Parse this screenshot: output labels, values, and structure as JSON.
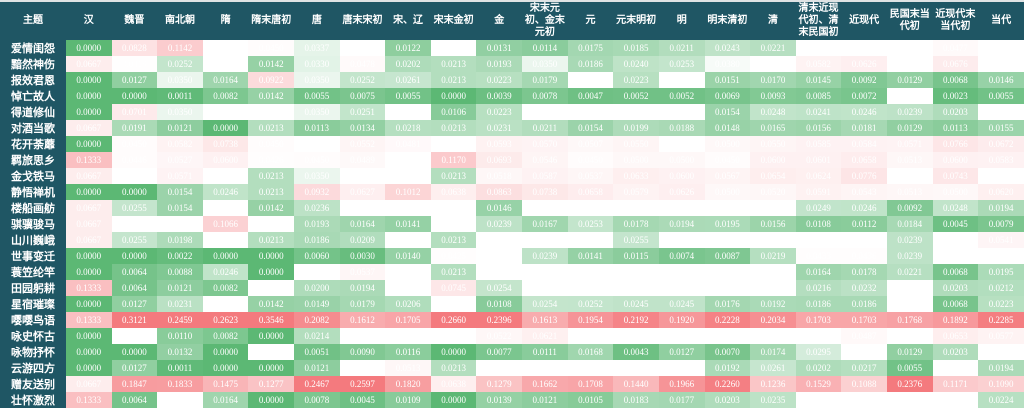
{
  "header": {
    "topic_label": "主题",
    "columns": [
      "汉",
      "魏晋",
      "南北朝",
      "隋",
      "隋末唐初",
      "唐",
      "唐末宋初",
      "宋、辽",
      "宋末金初",
      "金",
      "宋末元初、金末元初",
      "元",
      "元末明初",
      "明",
      "明末清初",
      "清",
      "清末近现代初、清末民国初",
      "近现代",
      "民国末当代初",
      "近现代末当代初",
      "当代"
    ]
  },
  "colors": {
    "low": "#5cb874",
    "mid": "#ffffff",
    "high": "#f47a7e",
    "header_bg": "#1f5664"
  },
  "chart_data": {
    "type": "heatmap",
    "rows": [
      {
        "topic": "爱情闺怨",
        "values": [
          0.0,
          0.0828,
          0.1142,
          0.04,
          0.045,
          0.0337,
          0.04,
          0.0122,
          0.04,
          0.0131,
          0.0114,
          0.0175,
          0.0185,
          0.0211,
          0.0243,
          0.0221,
          0.04,
          0.04,
          0.04,
          0.0477,
          0.04
        ]
      },
      {
        "topic": "黯然神伤",
        "values": [
          0.0667,
          0.0419,
          0.0252,
          0.04,
          0.0142,
          0.033,
          0.0478,
          0.0202,
          0.0213,
          0.0193,
          0.035,
          0.0186,
          0.024,
          0.0253,
          0.038,
          0.04,
          0.0582,
          0.0626,
          0.04,
          0.0676,
          0.04
        ]
      },
      {
        "topic": "报效君恩",
        "values": [
          0.0,
          0.0127,
          0.035,
          0.0164,
          0.0922,
          0.035,
          0.0252,
          0.0261,
          0.0213,
          0.0223,
          0.0179,
          0.04,
          0.0223,
          0.04,
          0.0151,
          0.017,
          0.0145,
          0.0092,
          0.0129,
          0.0068,
          0.0146
        ]
      },
      {
        "topic": "悼亡故人",
        "values": [
          0.0,
          0.0,
          0.0011,
          0.0082,
          0.0142,
          0.0055,
          0.0075,
          0.0055,
          0.0,
          0.0039,
          0.0078,
          0.0047,
          0.0052,
          0.0052,
          0.0069,
          0.0093,
          0.0085,
          0.0072,
          0.04,
          0.0023,
          0.0055
        ]
      },
      {
        "topic": "得道修仙",
        "values": [
          0.0,
          0.0701,
          0.035,
          0.04,
          0.04,
          0.035,
          0.0251,
          0.04,
          0.0106,
          0.0223,
          0.04,
          0.04,
          0.04,
          0.04,
          0.0154,
          0.0248,
          0.0241,
          0.0246,
          0.0239,
          0.0203,
          0.04
        ]
      },
      {
        "topic": "对酒当歌",
        "values": [
          0.0667,
          0.0191,
          0.0121,
          0.0,
          0.0213,
          0.0113,
          0.0134,
          0.0218,
          0.0213,
          0.0231,
          0.0211,
          0.0154,
          0.0199,
          0.0188,
          0.0148,
          0.0165,
          0.0156,
          0.0181,
          0.0129,
          0.0113,
          0.0155
        ]
      },
      {
        "topic": "花开荼蘼",
        "values": [
          0.0,
          0.045,
          0.0582,
          0.0738,
          0.045,
          0.04,
          0.0552,
          0.0481,
          0.04,
          0.0593,
          0.057,
          0.0507,
          0.055,
          0.04,
          0.05,
          0.055,
          0.0585,
          0.0584,
          0.0571,
          0.0766,
          0.0672
        ]
      },
      {
        "topic": "羁旅思乡",
        "values": [
          0.1333,
          0.0446,
          0.0527,
          0.06,
          0.0426,
          0.045,
          0.0489,
          0.04,
          0.117,
          0.0693,
          0.0546,
          0.045,
          0.05,
          0.05,
          0.045,
          0.06,
          0.0601,
          0.0658,
          0.0513,
          0.06,
          0.0583
        ]
      },
      {
        "topic": "金戈铁马",
        "values": [
          0.0667,
          0.04,
          0.0571,
          0.04,
          0.0213,
          0.035,
          0.04,
          0.04,
          0.0213,
          0.0518,
          0.0587,
          0.0537,
          0.0633,
          0.06,
          0.0567,
          0.0654,
          0.0624,
          0.0776,
          0.04,
          0.0743,
          0.04
        ]
      },
      {
        "topic": "静悟禅机",
        "values": [
          0.0,
          0.0,
          0.0154,
          0.0246,
          0.0213,
          0.0932,
          0.0627,
          0.1012,
          0.0638,
          0.0863,
          0.0738,
          0.0658,
          0.0579,
          0.0626,
          0.05,
          0.052,
          0.0591,
          0.0543,
          0.0513,
          0.05,
          0.062
        ]
      },
      {
        "topic": "楼船画舫",
        "values": [
          0.0667,
          0.0255,
          0.0154,
          0.04,
          0.0142,
          0.0236,
          0.04,
          0.04,
          0.04,
          0.0146,
          0.04,
          0.04,
          0.04,
          0.04,
          0.04,
          0.04,
          0.0249,
          0.0246,
          0.0092,
          0.0248,
          0.0194
        ]
      },
      {
        "topic": "骐骥骏马",
        "values": [
          0.0667,
          0.04,
          0.04,
          0.1066,
          0.04,
          0.0193,
          0.0164,
          0.0141,
          0.04,
          0.0239,
          0.0167,
          0.0253,
          0.0178,
          0.0194,
          0.0195,
          0.0156,
          0.0108,
          0.0112,
          0.0184,
          0.0045,
          0.0079
        ]
      },
      {
        "topic": "山川巍峨",
        "values": [
          0.0667,
          0.0255,
          0.0198,
          0.04,
          0.0213,
          0.0186,
          0.0209,
          0.04,
          0.0213,
          0.04,
          0.04,
          0.04,
          0.0255,
          0.04,
          0.04,
          0.04,
          0.04,
          0.04,
          0.0239,
          0.04,
          0.0541
        ]
      },
      {
        "topic": "世事变迁",
        "values": [
          0.0,
          0.0,
          0.0022,
          0.0,
          0.0,
          0.006,
          0.003,
          0.014,
          0.0425,
          0.04,
          0.0239,
          0.0141,
          0.0115,
          0.0074,
          0.0087,
          0.0219,
          0.0433,
          0.0436,
          0.0239,
          0.04,
          0.04
        ]
      },
      {
        "topic": "蓑笠纶竿",
        "values": [
          0.0,
          0.0064,
          0.0088,
          0.0246,
          0.0,
          0.04,
          0.0537,
          0.04,
          0.0213,
          0.04,
          0.04,
          0.04,
          0.04,
          0.04,
          0.04,
          0.04,
          0.0164,
          0.0178,
          0.0221,
          0.0068,
          0.0195
        ]
      },
      {
        "topic": "田园躬耕",
        "values": [
          0.1333,
          0.0064,
          0.0121,
          0.0082,
          0.04,
          0.02,
          0.0194,
          0.04,
          0.0745,
          0.0254,
          0.04,
          0.04,
          0.04,
          0.04,
          0.04,
          0.04,
          0.0216,
          0.0232,
          0.04,
          0.0203,
          0.0212
        ]
      },
      {
        "topic": "星宿璀璨",
        "values": [
          0.0,
          0.0127,
          0.0231,
          0.04,
          0.0142,
          0.0149,
          0.0179,
          0.0206,
          0.04,
          0.0108,
          0.0254,
          0.0252,
          0.0245,
          0.0245,
          0.0176,
          0.0192,
          0.0186,
          0.0186,
          0.04,
          0.0068,
          0.0223
        ]
      },
      {
        "topic": "嘤嘤鸟语",
        "values": [
          0.1333,
          0.3121,
          0.2459,
          0.2623,
          0.3546,
          0.2082,
          0.1612,
          0.1705,
          0.266,
          0.2396,
          0.1613,
          0.1954,
          0.2192,
          0.192,
          0.2228,
          0.2034,
          0.1703,
          0.1703,
          0.1768,
          0.1892,
          0.2285
        ]
      },
      {
        "topic": "咏史怀古",
        "values": [
          0.0,
          0.04,
          0.011,
          0.0082,
          0.0,
          0.0214,
          0.04,
          0.04,
          0.04,
          0.0522,
          0.0621,
          0.04,
          0.04,
          0.04,
          0.04,
          0.04,
          0.04,
          0.0487,
          0.04,
          0.0653,
          0.0577
        ]
      },
      {
        "topic": "咏物抒怀",
        "values": [
          0.0,
          0.0,
          0.0132,
          0.0,
          0.04,
          0.0051,
          0.009,
          0.0116,
          0.0,
          0.0077,
          0.0111,
          0.0168,
          0.0043,
          0.0127,
          0.007,
          0.0174,
          0.0295,
          0.04,
          0.0129,
          0.0203,
          0.04
        ]
      },
      {
        "topic": "云游四方",
        "values": [
          0.0,
          0.0127,
          0.0011,
          0.0,
          0.0,
          0.0121,
          0.04,
          0.0513,
          0.0213,
          0.04,
          0.04,
          0.04,
          0.04,
          0.04,
          0.0192,
          0.0261,
          0.0202,
          0.0217,
          0.0055,
          0.04,
          0.0194
        ]
      },
      {
        "topic": "赠友送别",
        "values": [
          0.0667,
          0.1847,
          0.1833,
          0.1475,
          0.1277,
          0.2467,
          0.2597,
          0.182,
          0.0638,
          0.1279,
          0.1662,
          0.1708,
          0.144,
          0.1966,
          0.226,
          0.1236,
          0.1529,
          0.1088,
          0.2376,
          0.1171,
          0.109
        ]
      },
      {
        "topic": "壮怀激烈",
        "values": [
          0.1333,
          0.0064,
          0.04,
          0.0164,
          0.0,
          0.0078,
          0.0045,
          0.0109,
          0.0,
          0.0139,
          0.0121,
          0.0105,
          0.0183,
          0.0177,
          0.0203,
          0.0235,
          0.04,
          0.04,
          0.04,
          0.04,
          0.0224
        ]
      }
    ],
    "color_scale": {
      "low_value": 0,
      "neutral_value": 0.04,
      "high_value": 0.35
    }
  }
}
